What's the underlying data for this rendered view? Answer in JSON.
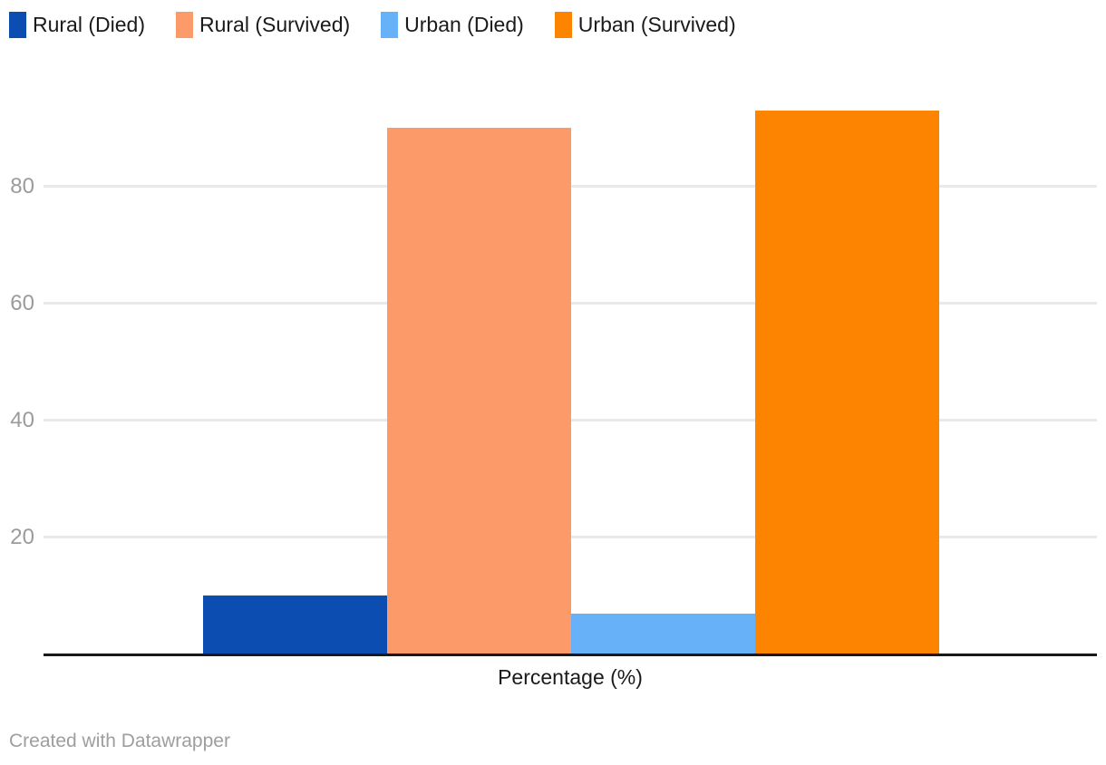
{
  "legend": {
    "items": [
      {
        "label": "Rural (Died)",
        "color": "#0b4db0"
      },
      {
        "label": "Rural (Survived)",
        "color": "#fd9a6a"
      },
      {
        "label": "Urban (Died)",
        "color": "#66b1f7"
      },
      {
        "label": "Urban (Survived)",
        "color": "#fd8400"
      }
    ]
  },
  "chart_data": {
    "type": "bar",
    "title": "",
    "categories": [
      "Rural (Died)",
      "Rural (Survived)",
      "Urban (Died)",
      "Urban (Survived)"
    ],
    "values": [
      10,
      90,
      7,
      93
    ],
    "colors": [
      "#0b4db0",
      "#fd9a6a",
      "#66b1f7",
      "#fd8400"
    ],
    "xlabel": "Percentage (%)",
    "ylabel": "",
    "ylim": [
      0,
      100
    ],
    "yticks": [
      20,
      40,
      60,
      80
    ],
    "grid": true,
    "legend_position": "top",
    "gridline_color": "#e9e9e9",
    "axis_line_color": "#191919",
    "tick_label_color": "#9b9b9b"
  },
  "footer": {
    "credit": "Created with Datawrapper"
  }
}
